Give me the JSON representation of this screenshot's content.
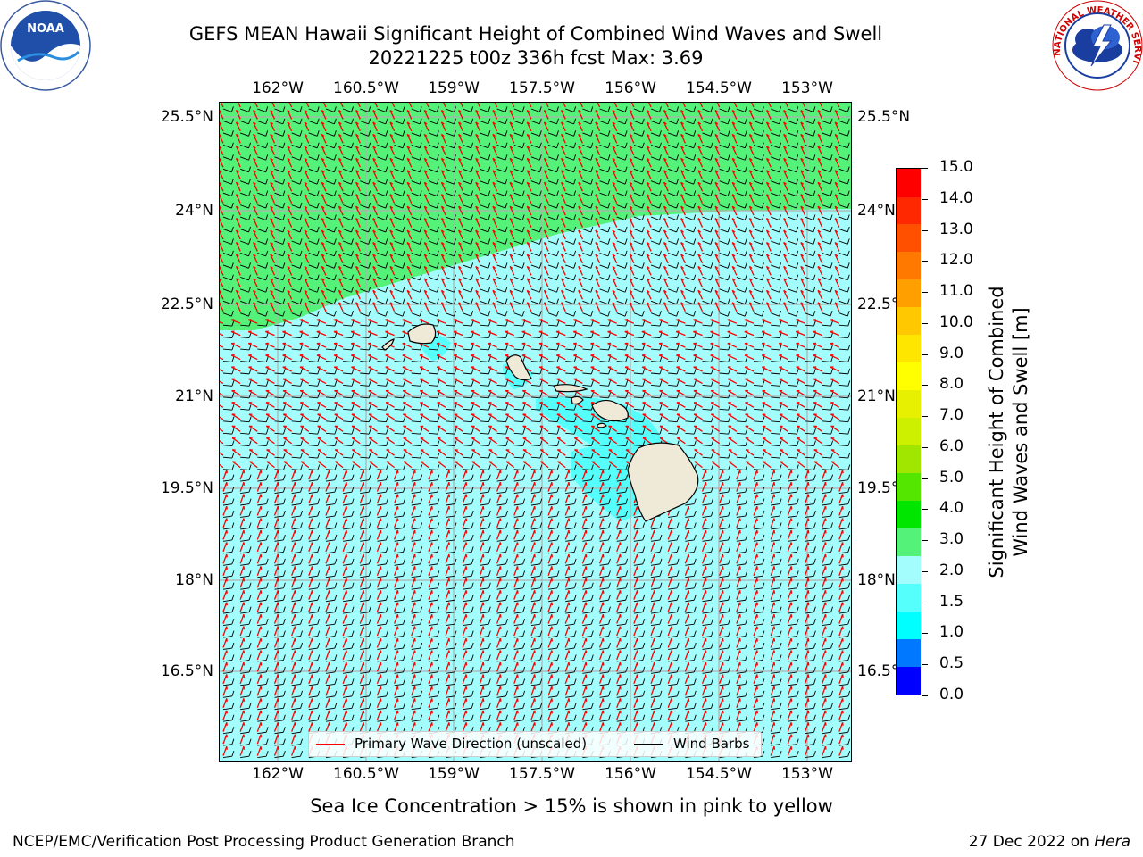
{
  "header": {
    "title_line1": "GEFS MEAN Hawaii Significant Height of Combined Wind Waves and Swell",
    "title_line2": "20221225 t00z 336h fcst   Max: 3.69"
  },
  "logos": {
    "left": {
      "icon": "noaa-logo-icon",
      "text": "NOAA"
    },
    "right": {
      "icon": "national-weather-service-logo-icon",
      "text": "NATIONAL WEATHER SERVICE"
    }
  },
  "map": {
    "longitude_labels": [
      "162°W",
      "160.5°W",
      "159°W",
      "157.5°W",
      "156°W",
      "154.5°W",
      "153°W"
    ],
    "latitude_labels": [
      "25.5°N",
      "24°N",
      "22.5°N",
      "21°N",
      "19.5°N",
      "18°N",
      "16.5°N"
    ],
    "colors": {
      "land": "#efe9d8",
      "green": "#55f27a",
      "light_cyan": "#a3fdfc",
      "cyan": "#55fffc",
      "wave_arrow": "#ff0000",
      "wind_barb": "#000000"
    }
  },
  "legend": {
    "wave": "Primary Wave Direction (unscaled)",
    "barb": "Wind Barbs"
  },
  "colorbar": {
    "label_line1": "Significant Height of Combined",
    "label_line2": "Wind Waves and Swell [m]",
    "ticks": [
      "15.0",
      "14.0",
      "13.0",
      "12.0",
      "11.0",
      "10.0",
      "9.0",
      "8.0",
      "7.0",
      "6.0",
      "5.0",
      "4.0",
      "3.0",
      "2.0",
      "1.5",
      "1.0",
      "0.5",
      "0.0"
    ],
    "colors": [
      "#0000ff",
      "#0078ff",
      "#00ffff",
      "#55fffc",
      "#a3fdfc",
      "#55f27a",
      "#00e600",
      "#55e600",
      "#a0e600",
      "#cdf000",
      "#e6f000",
      "#ffff00",
      "#ffe600",
      "#ffc800",
      "#ffa000",
      "#ff7800",
      "#ff5000",
      "#ff2800",
      "#ff0000"
    ]
  },
  "footer": {
    "sea_ice_note": "Sea Ice Concentration > 15% is shown in pink to yellow",
    "left": "NCEP/EMC/Verification Post Processing Product Generation Branch",
    "right_prefix": "27 Dec 2022 on ",
    "right_host": "Hera"
  }
}
